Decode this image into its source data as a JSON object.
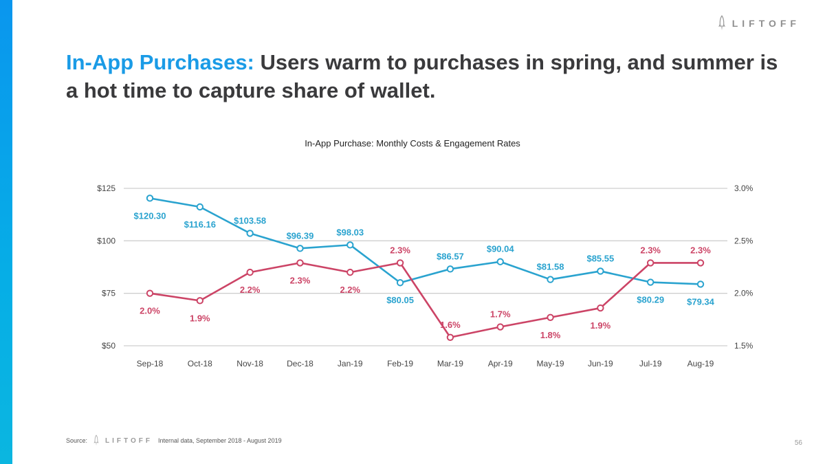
{
  "brand": {
    "name": "LIFTOFF",
    "accent_color": "#1a9be6",
    "bar_color": "#0aa8e8"
  },
  "slide": {
    "title_accent": "In-App Purchases:",
    "title_rest": " Users warm to purchases in spring, and summer is a hot time to capture share of wallet.",
    "page_number": "56"
  },
  "footer": {
    "source_label": "Source:",
    "source_text": "Internal data, September 2018 - August 2019"
  },
  "chart_data": {
    "type": "line",
    "title": "In-App Purchase: Monthly Costs & Engagement Rates",
    "categories": [
      "Sep-18",
      "Oct-18",
      "Nov-18",
      "Dec-18",
      "Jan-19",
      "Feb-19",
      "Mar-19",
      "Apr-19",
      "May-19",
      "Jun-19",
      "Jul-19",
      "Aug-19"
    ],
    "series": [
      {
        "name": "Monthly Cost",
        "axis": "left",
        "color": "#2aa3cf",
        "values": [
          120.3,
          116.16,
          103.58,
          96.39,
          98.03,
          80.05,
          86.57,
          90.04,
          81.58,
          85.55,
          80.29,
          79.34
        ],
        "labels": [
          "$120.30",
          "$116.16",
          "$103.58",
          "$96.39",
          "$98.03",
          "$80.05",
          "$86.57",
          "$90.04",
          "$81.58",
          "$85.55",
          "$80.29",
          "$79.34"
        ],
        "label_pos": [
          "below",
          "below",
          "above",
          "above",
          "above",
          "below",
          "above",
          "above",
          "above",
          "above",
          "below",
          "below"
        ]
      },
      {
        "name": "Engagement Rate",
        "axis": "right",
        "color": "#cc4466",
        "values": [
          2.0,
          1.93,
          2.2,
          2.29,
          2.2,
          2.29,
          1.58,
          1.68,
          1.77,
          1.86,
          2.29,
          2.29
        ],
        "labels": [
          "2.0%",
          "1.9%",
          "2.2%",
          "2.3%",
          "2.2%",
          "2.3%",
          "1.6%",
          "1.7%",
          "1.8%",
          "1.9%",
          "2.3%",
          "2.3%"
        ],
        "label_pos": [
          "below",
          "below",
          "below",
          "below",
          "below",
          "above",
          "above",
          "above",
          "below",
          "below",
          "above",
          "above"
        ]
      }
    ],
    "y_left": {
      "ylim": [
        50,
        125
      ],
      "ticks": [
        50,
        75,
        100,
        125
      ],
      "tick_labels": [
        "$50",
        "$75",
        "$100",
        "$125"
      ]
    },
    "y_right": {
      "ylim": [
        1.5,
        3.0
      ],
      "ticks": [
        1.5,
        2.0,
        2.5,
        3.0
      ],
      "tick_labels": [
        "1.5%",
        "2.0%",
        "2.5%",
        "3.0%"
      ]
    },
    "grid": true,
    "legend": "none"
  }
}
